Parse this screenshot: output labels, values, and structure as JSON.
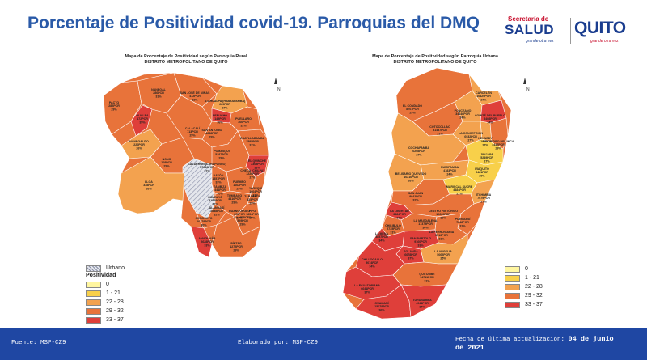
{
  "title": "Porcentaje de Positividad covid-19. Parroquias del DMQ",
  "logos": {
    "salud_top": "Secretaría de",
    "salud_main": "SALUD",
    "quito": "QUITO",
    "tagline": "grande otra vez"
  },
  "rural_map": {
    "title_line1": "Mapa de Porcentaje de Positividad según Parroquia Rural",
    "title_line2": "DISTRITO METROPOLITANO DE QUITO",
    "urban_legend_label": "Urbano",
    "legend_title": "Positividad",
    "parishes": [
      {
        "name": "PACTO",
        "pcr": "282PCR",
        "pct": "29%"
      },
      {
        "name": "GUALEA",
        "pcr": "172PCR",
        "pct": "35%"
      },
      {
        "name": "NANEGALITO",
        "pcr": "220PCR",
        "pct": "26%"
      },
      {
        "name": "NANEGAL",
        "pcr": "286PCR",
        "pct": "31%"
      },
      {
        "name": "SAN JOSÉ DE MINAS",
        "pcr": "412PCR",
        "pct": "32%"
      },
      {
        "name": "ATAHUALPA (HABASPAMBA)",
        "pcr": "229PCR",
        "pct": "27%"
      },
      {
        "name": "PERUCHO",
        "pcr": "149PCR",
        "pct": "36%"
      },
      {
        "name": "PUELLARO",
        "pcr": "366PCR",
        "pct": "32%"
      },
      {
        "name": "SAN ANTONIO",
        "pcr": "4688PCR",
        "pct": "29%"
      },
      {
        "name": "CALACALÍ",
        "pcr": "713PCR",
        "pct": "29%"
      },
      {
        "name": "NONO",
        "pcr": "108PCR",
        "pct": "29%"
      },
      {
        "name": "POMASQUI",
        "pcr": "5287PCR",
        "pct": "29%"
      },
      {
        "name": "GUAYLLABAMBA",
        "pcr": "2595PCR",
        "pct": "31%"
      },
      {
        "name": "EL QUINCHE",
        "pcr": "2305PCR",
        "pct": "33%"
      },
      {
        "name": "CHECA (CHILPA)",
        "pcr": "1220PCR",
        "pct": "27%"
      },
      {
        "name": "CALDERÓN (CARAPUNGO)",
        "pcr": "27636PCR",
        "pct": "31%"
      },
      {
        "name": "NAYÓN",
        "pcr": "1857PCR",
        "pct": "33%"
      },
      {
        "name": "ZÁMBIZA",
        "pcr": "441PCR",
        "pct": "30%"
      },
      {
        "name": "PUEMBO",
        "pcr": "1662PCR",
        "pct": "29%"
      },
      {
        "name": "YARUQUÍ",
        "pcr": "1604PCR",
        "pct": "31%"
      },
      {
        "name": "LLOA",
        "pcr": "338PCR",
        "pct": "26%"
      },
      {
        "name": "CUMBAYÁ",
        "pcr": "8188PCR",
        "pct": "31%"
      },
      {
        "name": "TUMBACO",
        "pcr": "4416PCR",
        "pct": "29%"
      },
      {
        "name": "TABABELA",
        "pcr": "325PCR",
        "pct": "28%"
      },
      {
        "name": "PIFO",
        "pcr": "1854PCR",
        "pct": "29%"
      },
      {
        "name": "CONOCOTO",
        "pcr": "10178PCR",
        "pct": "30%"
      },
      {
        "name": "ALANGASÍ",
        "pcr": "2838PCR",
        "pct": "32%"
      },
      {
        "name": "GUANGOPOLO",
        "pcr": "208PCR",
        "pct": "29%"
      },
      {
        "name": "LA MERCED",
        "pcr": "529PCR",
        "pct": "29%"
      },
      {
        "name": "AMAGUAÑA",
        "pcr": "2628PCR",
        "pct": "33%"
      },
      {
        "name": "PÍNTAG",
        "pcr": "1272PCR",
        "pct": "29%"
      }
    ]
  },
  "urban_map": {
    "title_line1": "Mapa de Porcentaje de Positividad según Parroquia Urbana",
    "title_line2": "DISTRITO METROPOLITANO DE QUITO",
    "parishes": [
      {
        "name": "CARCELÉN",
        "pcr": "10429PCR",
        "pct": "27%"
      },
      {
        "name": "EL CONDADO",
        "pcr": "8707PCR",
        "pct": "29%"
      },
      {
        "name": "PONCEANO",
        "pcr": "34446PCR",
        "pct": "24%"
      },
      {
        "name": "COMITÉ DEL PUEBLO",
        "pcr": "8408PCR",
        "pct": "34%"
      },
      {
        "name": "COTOCOLLAO",
        "pcr": "31437PCR",
        "pct": "31%"
      },
      {
        "name": "LA CONCEPCIÓN",
        "pcr": "6932PCR",
        "pct": "27%"
      },
      {
        "name": "KENNEDY",
        "pcr": "7109PCR",
        "pct": "27%"
      },
      {
        "name": "SAN ISIDRO DEL INCA",
        "pcr": "4447PCR",
        "pct": "29%"
      },
      {
        "name": "COCHAPAMBA",
        "pcr": "6208PCR",
        "pct": "27%"
      },
      {
        "name": "JIPIJAPA",
        "pcr": "5249PCR",
        "pct": "27%"
      },
      {
        "name": "RUMIPAMBA",
        "pcr": "4183PCR",
        "pct": "24%"
      },
      {
        "name": "IÑAQUITO",
        "pcr": "6481PCR",
        "pct": "20%"
      },
      {
        "name": "BELISARIO QUEVEDO",
        "pcr": "10216PCR",
        "pct": "26%"
      },
      {
        "name": "MARISCAL SUCRE",
        "pcr": "4484PCR",
        "pct": "21%"
      },
      {
        "name": "ITCHIMBÍA",
        "pcr": "7079PCR",
        "pct": "27%"
      },
      {
        "name": "SAN JUAN",
        "pcr": "9942PCR",
        "pct": "32%"
      },
      {
        "name": "LA LIBERTAD",
        "pcr": "3384PCR",
        "pct": "37%"
      },
      {
        "name": "CENTRO HISTÓRICO",
        "pcr": "12660PCR",
        "pct": "30%"
      },
      {
        "name": "CHILIBULO",
        "pcr": "2735PCR",
        "pct": "31%"
      },
      {
        "name": "PUENGASÍ",
        "pcr": "7848PCR",
        "pct": "31%"
      },
      {
        "name": "LA MAGDALENA",
        "pcr": "17379PCR",
        "pct": "30%"
      },
      {
        "name": "LA MENA",
        "pcr": "3857PCR",
        "pct": "34%"
      },
      {
        "name": "LA FERROVIARIA",
        "pcr": "5513PCR",
        "pct": "31%"
      },
      {
        "name": "SAN BARTOLO",
        "pcr": "9160PCR",
        "pct": "33%"
      },
      {
        "name": "SOLANDA",
        "pcr": "6678PCR",
        "pct": "37%"
      },
      {
        "name": "CHILLOGALLO",
        "pcr": "5074PCR",
        "pct": "34%"
      },
      {
        "name": "LA ARGELIA",
        "pcr": "5062PCR",
        "pct": "25%"
      },
      {
        "name": "QUITUMBE",
        "pcr": "14711PCR",
        "pct": "31%"
      },
      {
        "name": "LA ECUATORIANA",
        "pcr": "6641PCR",
        "pct": "37%"
      },
      {
        "name": "GUAMANÍ",
        "pcr": "15078PCR",
        "pct": "36%"
      },
      {
        "name": "TURUBAMBA",
        "pcr": "4944PCR",
        "pct": "34%"
      }
    ]
  },
  "legend": {
    "classes": [
      {
        "label": "0",
        "color": "#fff6a0"
      },
      {
        "label": "1 - 21",
        "color": "#f8d04a"
      },
      {
        "label": "22 - 28",
        "color": "#f3a24f"
      },
      {
        "label": "29 - 32",
        "color": "#e8733a"
      },
      {
        "label": "33 - 37",
        "color": "#df3f3a"
      }
    ],
    "urban_swatch_color": "#c8ccd6"
  },
  "north": "N",
  "footer": {
    "source": "Fuente: MSP-CZ9",
    "made_by": "Elaborado por: MSP-CZ9",
    "updated_label": "Fecha de última actualización:",
    "updated_date_a": "04 de junio",
    "updated_date_b": "de 2021"
  }
}
